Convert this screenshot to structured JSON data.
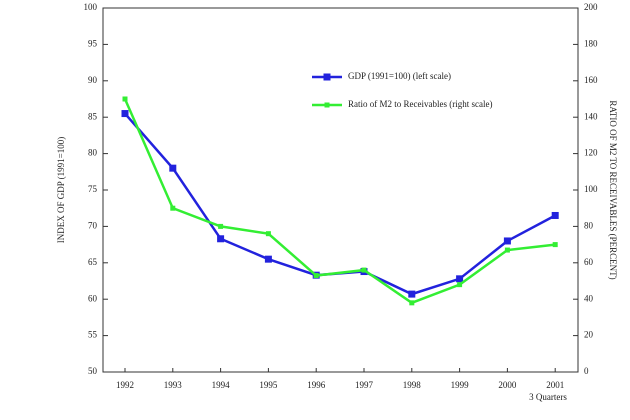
{
  "chart_data": {
    "type": "line",
    "y_label": "INDEX OF GDP (1991=100)",
    "y2_label": "RATIO OF M2 TO RECEIVABLES (PERCENT)",
    "annotation": "3 Quarters",
    "categories": [
      "1992",
      "1993",
      "1994",
      "1995",
      "1996",
      "1997",
      "1998",
      "1999",
      "2000",
      "2001"
    ],
    "series": [
      {
        "name": "GDP (1991=100) (left scale)",
        "color": "#2222dd",
        "values": [
          85.5,
          78,
          68.3,
          65.5,
          63.3,
          63.8,
          60.7,
          62.8,
          68,
          71.5
        ]
      },
      {
        "name": "Ratio of M2 to Receivables (right scale)",
        "color": "#33ee33",
        "axis": "y2",
        "values": [
          150,
          90,
          80,
          76,
          53,
          56,
          38,
          48,
          67,
          70
        ]
      }
    ],
    "ylim": [
      50,
      100
    ],
    "yticks": [
      50,
      55,
      60,
      65,
      70,
      75,
      80,
      85,
      90,
      95,
      100
    ],
    "y2lim": [
      0,
      200
    ],
    "y2ticks": [
      0,
      20,
      40,
      60,
      80,
      100,
      120,
      140,
      160,
      180,
      200
    ],
    "grid": false
  }
}
